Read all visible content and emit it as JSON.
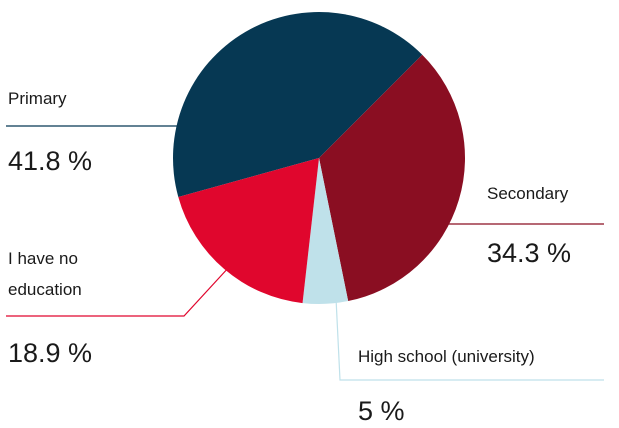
{
  "chart_data": {
    "type": "pie",
    "title": "",
    "slices": [
      {
        "label": "Primary",
        "display_lines": [
          "Primary"
        ],
        "value": 41.8,
        "value_label": "41.8 %",
        "color": "#063853"
      },
      {
        "label": "Secondary",
        "display_lines": [
          "Secondary"
        ],
        "value": 34.3,
        "value_label": "34.3 %",
        "color": "#8a0e22"
      },
      {
        "label": "High school (university)",
        "display_lines": [
          "High school (university)"
        ],
        "value": 5,
        "value_label": "5 %",
        "color": "#bfe1ea"
      },
      {
        "label": "I have no education",
        "display_lines": [
          "I have no",
          "education"
        ],
        "value": 18.9,
        "value_label": "18.9 %",
        "color": "#e0062d"
      }
    ],
    "legend": "none",
    "label_style": "leader-lines"
  }
}
